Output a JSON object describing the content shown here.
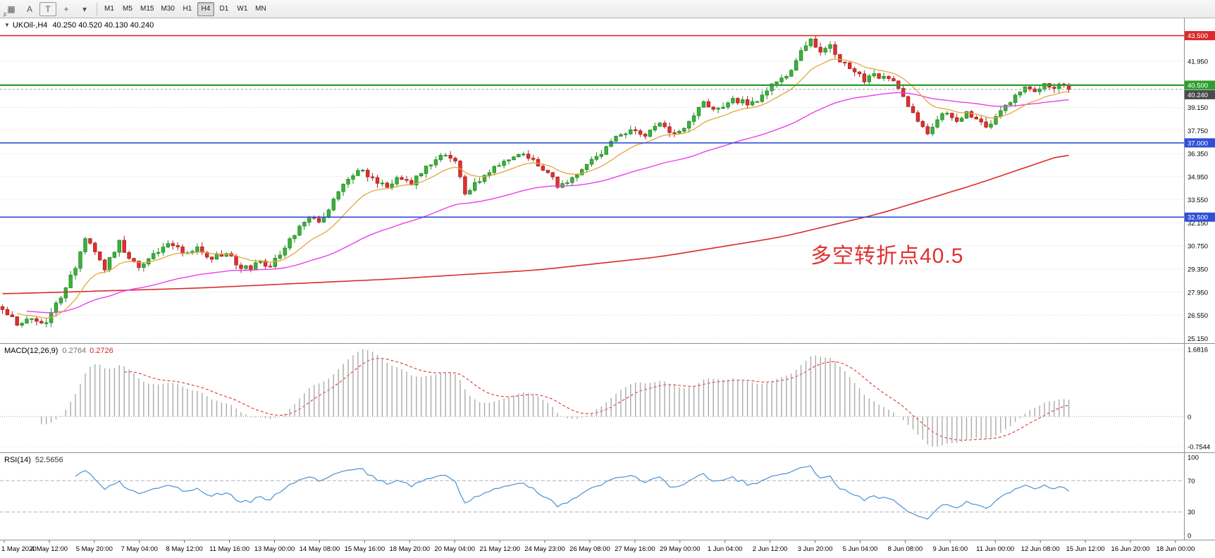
{
  "toolbar": {
    "partial_label": "F",
    "icons": [
      {
        "name": "grid-icon",
        "glyph": "▦",
        "boxed": false
      },
      {
        "name": "text-a-icon",
        "glyph": "A",
        "boxed": false
      },
      {
        "name": "text-t-icon",
        "glyph": "T",
        "boxed": true
      },
      {
        "name": "crosshair-icon",
        "glyph": "+",
        "boxed": false
      },
      {
        "name": "chevron-down-icon",
        "glyph": "▾",
        "boxed": false
      }
    ],
    "timeframes": [
      "M1",
      "M5",
      "M15",
      "M30",
      "H1",
      "H4",
      "D1",
      "W1",
      "MN"
    ],
    "active_timeframe": "H4"
  },
  "main_chart": {
    "title_symbol": "UKOil-,H4",
    "title_ohlc": "40.250 40.520 40.130 40.240",
    "collapse_glyph": "▼",
    "annotation": {
      "text": "多空转折点40.5",
      "color": "#e03030"
    },
    "axis_ticks": [
      "41.950",
      "39.150",
      "37.750",
      "36.350",
      "34.950",
      "33.550",
      "32.150",
      "30.750",
      "29.350",
      "27.950",
      "26.550",
      "25.150"
    ],
    "price_tags": [
      {
        "label": "43.500",
        "value": 43.5,
        "color": "#d92b2b"
      },
      {
        "label": "40.500",
        "value": 40.5,
        "color": "#2f9e2f"
      },
      {
        "label": "40.240",
        "value": 40.24,
        "color": "#4a4a4a"
      },
      {
        "label": "37.000",
        "value": 37.0,
        "color": "#2f4fd8"
      },
      {
        "label": "32.500",
        "value": 32.5,
        "color": "#2f4fd8"
      }
    ],
    "hlines": [
      {
        "value": 43.5,
        "color": "#d92b2b",
        "width": 1.6,
        "dash": ""
      },
      {
        "value": 40.5,
        "color": "#2f9e2f",
        "width": 2.2,
        "dash": ""
      },
      {
        "value": 40.24,
        "color": "#999999",
        "width": 1,
        "dash": "3,3"
      },
      {
        "value": 37.0,
        "color": "#2f4fd8",
        "width": 1.6,
        "dash": ""
      },
      {
        "value": 32.5,
        "color": "#2f4fd8",
        "width": 1.6,
        "dash": ""
      }
    ]
  },
  "macd_panel": {
    "label": "MACD(12,26,9)",
    "value_main": "0.2764",
    "value_signal": "0.2726",
    "axis_labels": [
      "1.6816",
      "0",
      "-0.7544"
    ],
    "max": 1.6816,
    "min": -0.7544
  },
  "rsi_panel": {
    "label": "RSI(14)",
    "value": "52.5656",
    "axis_labels": [
      "100",
      "70",
      "30",
      "0"
    ],
    "levels": [
      70,
      30
    ]
  },
  "time_axis": {
    "labels": [
      "1 May 2020",
      "4 May 12:00",
      "5 May 20:00",
      "7 May 04:00",
      "8 May 12:00",
      "11 May 16:00",
      "13 May 00:00",
      "14 May 08:00",
      "15 May 16:00",
      "18 May 20:00",
      "20 May 04:00",
      "21 May 12:00",
      "24 May 23:00",
      "26 May 08:00",
      "27 May 16:00",
      "29 May 00:00",
      "1 Jun 04:00",
      "2 Jun 12:00",
      "3 Jun 20:00",
      "5 Jun 04:00",
      "8 Jun 08:00",
      "9 Jun 16:00",
      "11 Jun 00:00",
      "12 Jun 08:00",
      "15 Jun 12:00",
      "16 Jun 20:00",
      "18 Jun 00:00"
    ]
  },
  "chart_data": {
    "type": "candlestick",
    "symbol": "UKOil-",
    "timeframe": "H4",
    "ohlc_current": {
      "open": 40.25,
      "high": 40.52,
      "low": 40.13,
      "close": 40.24
    },
    "price_range": [
      24.91,
      44.55
    ],
    "grid_step": 1.4,
    "grid_base": 25.15,
    "candle_count": 220,
    "close_anchors": [
      [
        0,
        26.9
      ],
      [
        3,
        25.95
      ],
      [
        6,
        26.35
      ],
      [
        9,
        26.1
      ],
      [
        12,
        27.6
      ],
      [
        15,
        29.4
      ],
      [
        17,
        31.2
      ],
      [
        19,
        30.4
      ],
      [
        21,
        29.3
      ],
      [
        24,
        31.1
      ],
      [
        26,
        30.0
      ],
      [
        28,
        29.45
      ],
      [
        31,
        30.3
      ],
      [
        34,
        30.9
      ],
      [
        37,
        30.3
      ],
      [
        40,
        30.7
      ],
      [
        43,
        29.95
      ],
      [
        46,
        30.3
      ],
      [
        48,
        29.6
      ],
      [
        51,
        29.3
      ],
      [
        53,
        29.85
      ],
      [
        55,
        29.5
      ],
      [
        57,
        30.2
      ],
      [
        60,
        31.4
      ],
      [
        63,
        32.5
      ],
      [
        65,
        32.2
      ],
      [
        68,
        33.6
      ],
      [
        71,
        34.8
      ],
      [
        74,
        35.35
      ],
      [
        76,
        34.9
      ],
      [
        79,
        34.3
      ],
      [
        81,
        34.9
      ],
      [
        84,
        34.45
      ],
      [
        87,
        35.6
      ],
      [
        90,
        36.25
      ],
      [
        93,
        35.9
      ],
      [
        95,
        33.9
      ],
      [
        97,
        34.6
      ],
      [
        100,
        35.2
      ],
      [
        103,
        35.9
      ],
      [
        106,
        36.3
      ],
      [
        109,
        36.0
      ],
      [
        112,
        35.2
      ],
      [
        114,
        34.3
      ],
      [
        117,
        34.9
      ],
      [
        120,
        35.7
      ],
      [
        123,
        36.3
      ],
      [
        126,
        37.4
      ],
      [
        129,
        37.8
      ],
      [
        132,
        37.4
      ],
      [
        135,
        38.2
      ],
      [
        138,
        37.6
      ],
      [
        141,
        38.3
      ],
      [
        144,
        39.5
      ],
      [
        147,
        39.1
      ],
      [
        150,
        39.7
      ],
      [
        153,
        39.3
      ],
      [
        156,
        39.9
      ],
      [
        159,
        40.7
      ],
      [
        162,
        41.4
      ],
      [
        164,
        42.6
      ],
      [
        166,
        43.3
      ],
      [
        168,
        42.5
      ],
      [
        170,
        42.95
      ],
      [
        172,
        41.9
      ],
      [
        175,
        41.3
      ],
      [
        177,
        40.7
      ],
      [
        179,
        41.2
      ],
      [
        182,
        40.9
      ],
      [
        184,
        40.3
      ],
      [
        186,
        39.2
      ],
      [
        188,
        38.3
      ],
      [
        190,
        37.55
      ],
      [
        192,
        38.4
      ],
      [
        194,
        38.8
      ],
      [
        196,
        38.3
      ],
      [
        198,
        38.9
      ],
      [
        200,
        38.45
      ],
      [
        202,
        37.95
      ],
      [
        204,
        38.6
      ],
      [
        206,
        39.3
      ],
      [
        208,
        39.9
      ],
      [
        210,
        40.4
      ],
      [
        212,
        40.1
      ],
      [
        214,
        40.6
      ],
      [
        216,
        40.3
      ],
      [
        218,
        40.5
      ],
      [
        219,
        40.24
      ]
    ],
    "noise_amplitude": 0.2,
    "wick_amplitude": 0.28,
    "up_color": "#1f8c1f",
    "up_fill": "#3db03d",
    "down_color": "#a81e1e",
    "down_fill": "#e03030",
    "ma_fast": {
      "period": 13,
      "color": "#e8a33d"
    },
    "ma_mid": {
      "period": 55,
      "color": "#ee3cee"
    },
    "ma_slow": {
      "color": "#d92b2b",
      "anchors": [
        [
          0,
          27.85
        ],
        [
          40,
          28.2
        ],
        [
          80,
          28.75
        ],
        [
          110,
          29.3
        ],
        [
          135,
          30.1
        ],
        [
          160,
          31.3
        ],
        [
          180,
          32.7
        ],
        [
          200,
          34.5
        ],
        [
          219,
          36.4
        ]
      ]
    },
    "macd": {
      "fast": 12,
      "slow": 26,
      "signal": 9,
      "hist_color": "#aaaaaa",
      "signal_color": "#e03030"
    },
    "rsi": {
      "period": 14,
      "color": "#4a90d2"
    }
  }
}
